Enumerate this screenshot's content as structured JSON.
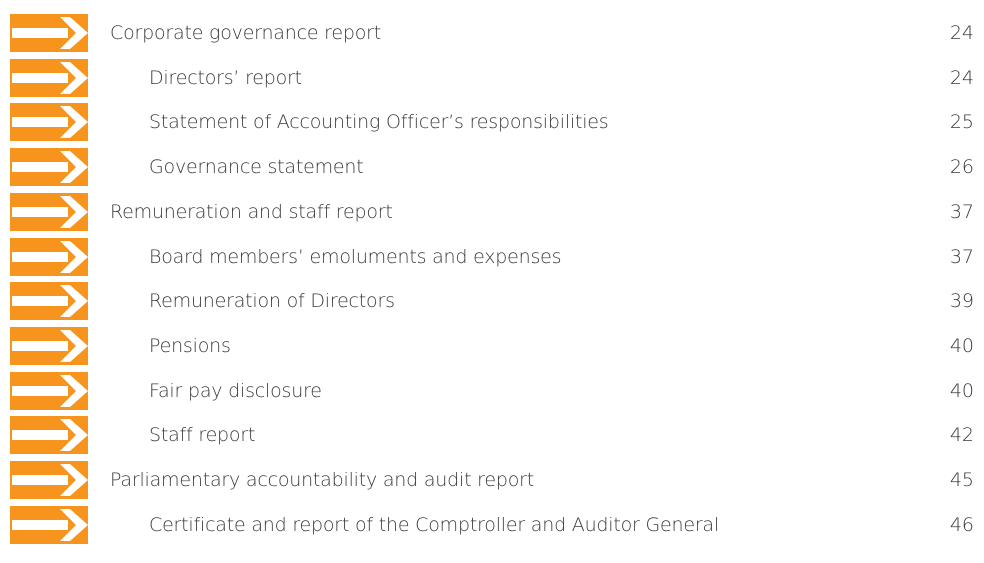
{
  "sections": [
    {
      "title": "Corporate governance report",
      "page": 24,
      "items": [
        {
          "title": "Directors’ report",
          "page": 24
        },
        {
          "title": "Statement of Accounting Officer’s responsibilities",
          "page": 25
        },
        {
          "title": "Governance statement",
          "page": 26
        }
      ]
    },
    {
      "title": "Remuneration and staff report",
      "page": 37,
      "items": [
        {
          "title": "Board members’ emoluments and expenses",
          "page": 37
        },
        {
          "title": "Remuneration of Directors",
          "page": 39
        },
        {
          "title": "Pensions",
          "page": 40
        },
        {
          "title": "Fair pay disclosure",
          "page": 40
        },
        {
          "title": "Staff report",
          "page": 42
        }
      ]
    },
    {
      "title": "Parliamentary accountability and audit report",
      "page": 45,
      "items": [
        {
          "title": "Certificate and report of the Comptroller and Auditor General",
          "page": 46
        }
      ]
    }
  ]
}
